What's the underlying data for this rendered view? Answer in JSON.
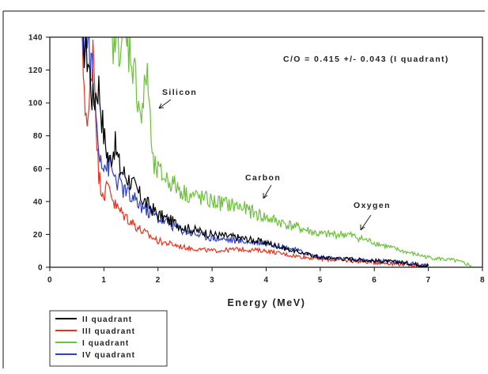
{
  "chart_data": {
    "type": "line",
    "title": "",
    "xlabel": "Energy (MeV)",
    "ylabel": "",
    "xlim": [
      0,
      8
    ],
    "ylim": [
      0,
      140
    ],
    "xticks": [
      0,
      1,
      2,
      3,
      4,
      5,
      6,
      7,
      8
    ],
    "yticks": [
      0,
      20,
      40,
      60,
      80,
      100,
      120,
      140
    ],
    "grid": false,
    "legend_position": "bottom-left outside",
    "series": [
      {
        "name": "II quadrant",
        "color": "#000000",
        "x": [
          0.6,
          0.7,
          0.8,
          0.9,
          1.0,
          1.1,
          1.2,
          1.3,
          1.5,
          1.7,
          2.0,
          2.5,
          3.0,
          3.5,
          4.0,
          4.5,
          5.0,
          5.5,
          6.0,
          6.5,
          7.0
        ],
        "y": [
          140,
          130,
          100,
          112,
          80,
          64,
          75,
          60,
          52,
          42,
          32,
          24,
          20,
          18,
          15,
          10,
          6,
          5,
          4,
          3,
          1
        ]
      },
      {
        "name": "III quadrant",
        "color": "#e8321e",
        "x": [
          0.6,
          0.7,
          0.8,
          0.9,
          1.0,
          1.1,
          1.2,
          1.3,
          1.5,
          1.7,
          2.0,
          2.5,
          3.0,
          3.5,
          4.0,
          4.5,
          5.0,
          5.5,
          6.0,
          6.5,
          7.0
        ],
        "y": [
          130,
          80,
          140,
          55,
          45,
          50,
          38,
          34,
          28,
          22,
          16,
          12,
          10,
          11,
          10,
          7,
          5,
          4,
          3,
          2,
          1
        ]
      },
      {
        "name": "I quadrant",
        "color": "#6dc13c",
        "x": [
          1.1,
          1.3,
          1.5,
          1.7,
          1.8,
          1.9,
          2.0,
          2.5,
          3.0,
          3.5,
          4.0,
          4.5,
          5.0,
          5.5,
          6.0,
          6.5,
          7.0,
          7.5,
          7.8
        ],
        "y": [
          140,
          140,
          132,
          90,
          122,
          62,
          58,
          45,
          40,
          37,
          30,
          25,
          20,
          20,
          15,
          10,
          6,
          4,
          1
        ]
      },
      {
        "name": "IV quadrant",
        "color": "#2f3fc8",
        "x": [
          0.6,
          0.7,
          0.8,
          0.9,
          1.0,
          1.1,
          1.2,
          1.3,
          1.5,
          1.7,
          2.0,
          2.5,
          3.0,
          3.5,
          4.0,
          4.5,
          5.0,
          5.5,
          6.0,
          6.5,
          7.0
        ],
        "y": [
          140,
          140,
          110,
          75,
          62,
          62,
          55,
          50,
          42,
          37,
          30,
          22,
          18,
          16,
          15,
          11,
          6,
          5,
          4,
          3,
          1
        ]
      }
    ],
    "annotations": [
      {
        "text": "C/O = 0.415 +/- 0.043 (I quadrant)"
      },
      {
        "text": "Silicon"
      },
      {
        "text": "Carbon"
      },
      {
        "text": "Oxygen"
      }
    ]
  }
}
